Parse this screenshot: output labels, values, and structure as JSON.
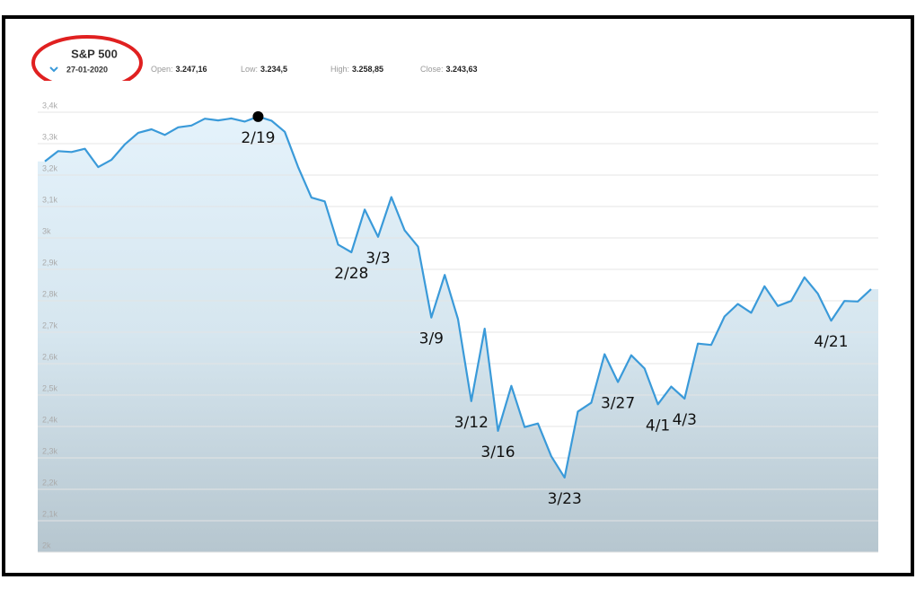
{
  "header": {
    "title": "S&P 500",
    "date": "27-01-2020",
    "stats": [
      {
        "label": "Open:",
        "value": "3.247,16"
      },
      {
        "label": "Low:",
        "value": "3.234,5"
      },
      {
        "label": "High:",
        "value": "3.258,85"
      },
      {
        "label": "Close:",
        "value": "3.243,63"
      }
    ]
  },
  "chart_data": {
    "type": "area",
    "categories": [
      null,
      null,
      null,
      null,
      null,
      null,
      null,
      null,
      null,
      null,
      null,
      null,
      null,
      null,
      null,
      null,
      "2/19",
      null,
      null,
      null,
      null,
      null,
      null,
      "2/28",
      null,
      "3/3",
      null,
      null,
      null,
      "3/9",
      null,
      null,
      "3/12",
      null,
      "3/16",
      null,
      null,
      null,
      null,
      "3/23",
      null,
      null,
      null,
      "3/27",
      null,
      null,
      "4/1",
      null,
      "4/3",
      null,
      null,
      null,
      null,
      null,
      null,
      null,
      null,
      null,
      null,
      "4/21",
      null,
      null,
      null
    ],
    "values": [
      3243.63,
      3276.24,
      3273.4,
      3283.66,
      3225.52,
      3248.92,
      3297.59,
      3334.69,
      3345.78,
      3327.71,
      3352.09,
      3357.75,
      3379.45,
      3373.94,
      3380.16,
      3370.29,
      3386.15,
      3373.23,
      3337.75,
      3225.89,
      3128.21,
      3116.39,
      2978.76,
      2954.22,
      3090.23,
      3003.37,
      3130.12,
      3023.94,
      2972.37,
      2746.56,
      2882.23,
      2741.38,
      2480.64,
      2711.02,
      2386.13,
      2529.19,
      2398.1,
      2409.39,
      2304.92,
      2237.4,
      2447.33,
      2475.56,
      2630.07,
      2541.47,
      2626.65,
      2584.59,
      2470.5,
      2526.9,
      2488.65,
      2663.68,
      2659.41,
      2749.98,
      2789.82,
      2761.63,
      2846.06,
      2783.36,
      2799.55,
      2874.56,
      2823.16,
      2736.56,
      2799.31,
      2797.8,
      2836.74
    ],
    "color": "#3a9ad9",
    "ylim": [
      2000,
      3500
    ],
    "yticks": [
      {
        "value": 2000,
        "label": "2k"
      },
      {
        "value": 2100,
        "label": "2,1k"
      },
      {
        "value": 2200,
        "label": "2,2k"
      },
      {
        "value": 2300,
        "label": "2,3k"
      },
      {
        "value": 2400,
        "label": "2,4k"
      },
      {
        "value": 2500,
        "label": "2,5k"
      },
      {
        "value": 2600,
        "label": "2,6k"
      },
      {
        "value": 2700,
        "label": "2,7k"
      },
      {
        "value": 2800,
        "label": "2,8k"
      },
      {
        "value": 2900,
        "label": "2,9k"
      },
      {
        "value": 3000,
        "label": "3k"
      },
      {
        "value": 3100,
        "label": "3,1k"
      },
      {
        "value": 3200,
        "label": "3,2k"
      },
      {
        "value": 3300,
        "label": "3,3k"
      },
      {
        "value": 3400,
        "label": "3,4k"
      }
    ],
    "grid": true
  }
}
